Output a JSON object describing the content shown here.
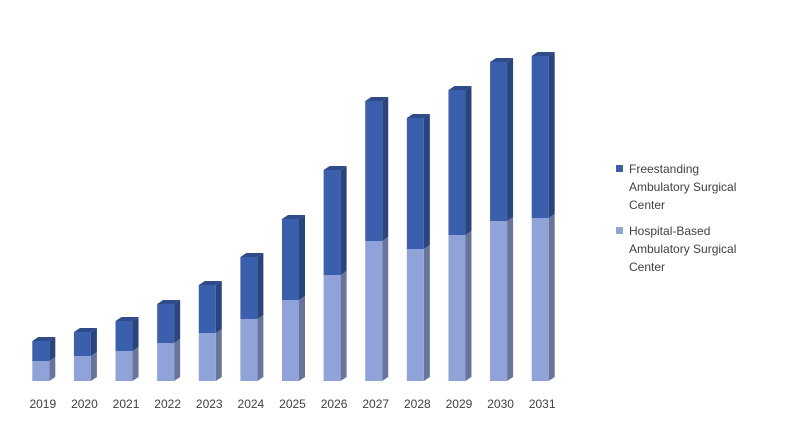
{
  "chart_data": {
    "type": "bar",
    "stacked": true,
    "categories": [
      "2019",
      "2020",
      "2021",
      "2022",
      "2023",
      "2024",
      "2025",
      "2026",
      "2027",
      "2028",
      "2029",
      "2030",
      "2031"
    ],
    "series": [
      {
        "name": "Freestanding Ambulatory Surgical Center",
        "color": "#3a5fad",
        "values": [
          20,
          24,
          30,
          39,
          48,
          62,
          81,
          105,
          140,
          131,
          145,
          159,
          162
        ]
      },
      {
        "name": "Hospital-Based Ambulatory Surgical Center",
        "color": "#8fa3d8",
        "values": [
          20,
          25,
          30,
          38,
          48,
          62,
          81,
          106,
          140,
          132,
          146,
          160,
          163
        ]
      }
    ],
    "ylim": [
      0,
      340
    ],
    "legend": "right"
  }
}
